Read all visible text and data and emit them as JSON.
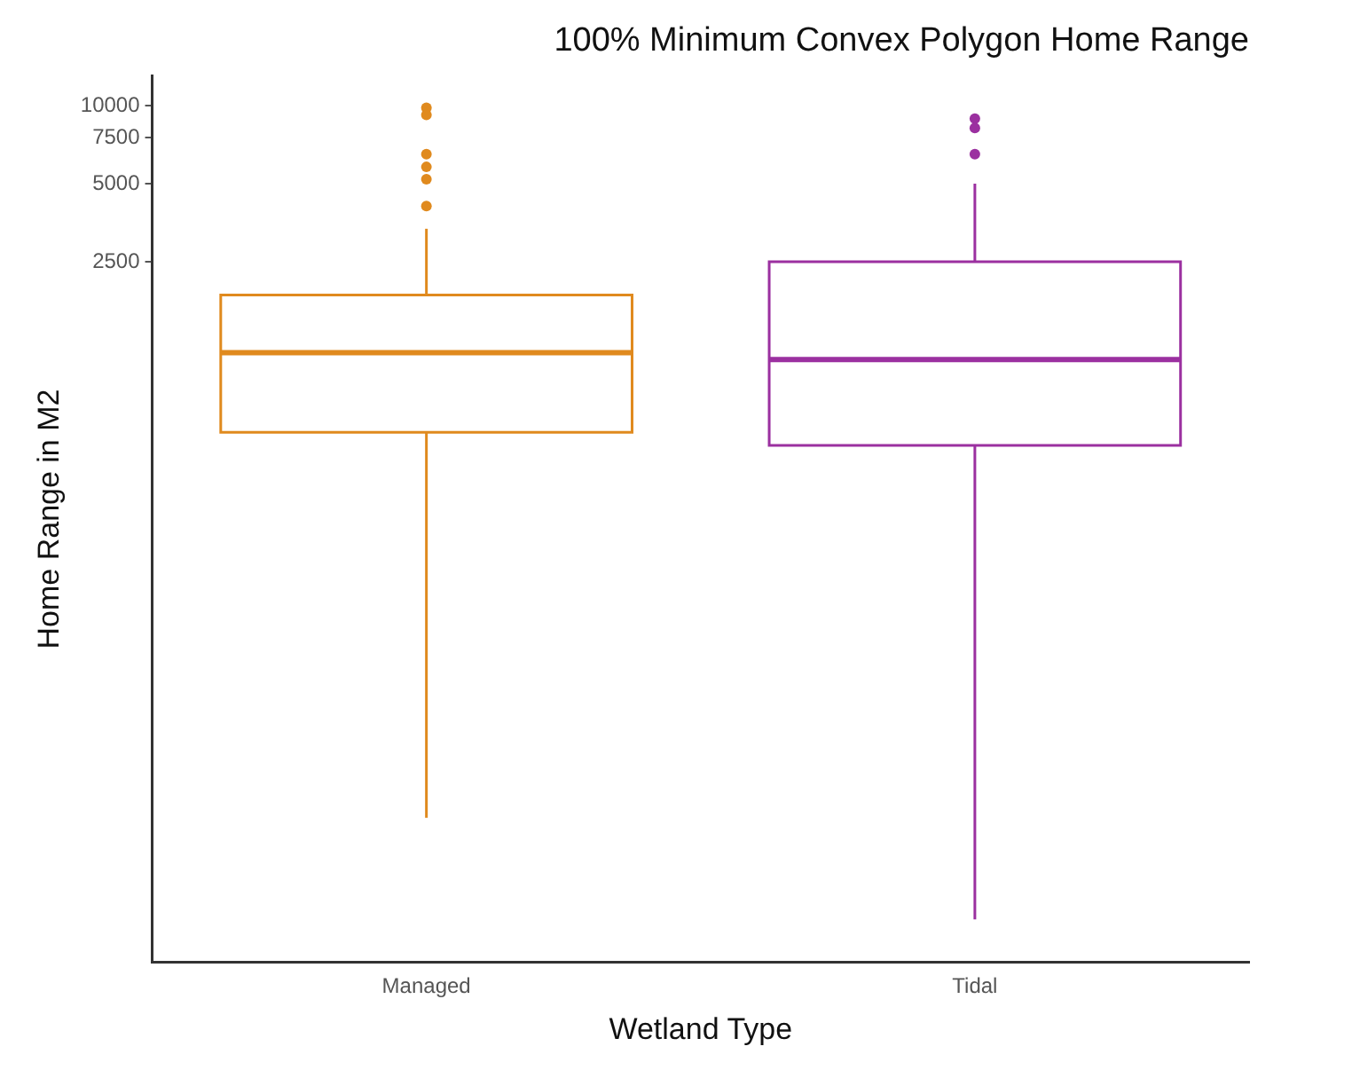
{
  "chart_data": {
    "type": "box",
    "title": "100% Minimum Convex Polygon Home Range",
    "xlabel": "Wetland Type",
    "ylabel": "Home Range in M2",
    "categories": [
      "Managed",
      "Tidal"
    ],
    "log": true,
    "ylim": [
      5,
      13000
    ],
    "yticks": [
      2500,
      5000,
      7500,
      10000
    ],
    "grid": false,
    "legend": false,
    "series": [
      {
        "color": "#e08a1e",
        "boxes": [
          {
            "low": 18,
            "q1": 550,
            "median": 1115,
            "q3": 1860,
            "high": 3350,
            "outliers": [
              9800,
              9200,
              6500,
              5800,
              5200,
              4100
            ]
          },
          null
        ]
      },
      {
        "color": "#9b30a0",
        "boxes": [
          null,
          {
            "low": 7.3,
            "q1": 490,
            "median": 1050,
            "q3": 2500,
            "high": 5000,
            "outliers": [
              8900,
              8200,
              6500
            ]
          }
        ]
      }
    ]
  }
}
